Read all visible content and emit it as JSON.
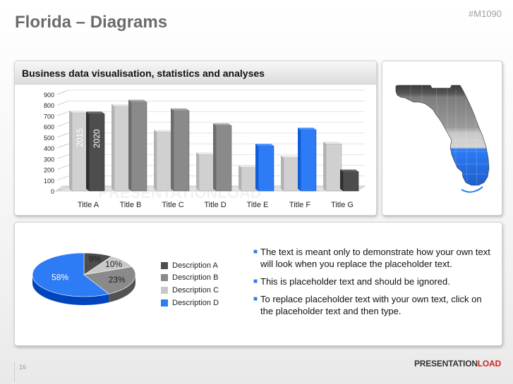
{
  "slide": {
    "title": "Florida – Diagrams",
    "code": "#M1090",
    "page_number": "16",
    "brand_main": "PRESENTATION",
    "brand_accent": "LOAD",
    "watermark": "PRESENTATIONLOAD"
  },
  "bar_panel": {
    "header": "Business data visualisation, statistics and analyses"
  },
  "colors": {
    "light": "#d0d0d0",
    "mid": "#8a8a8a",
    "dark": "#4d4d4d",
    "blue": "#2d7bf5"
  },
  "chart_data": [
    {
      "type": "bar",
      "categories": [
        "Title A",
        "Title B",
        "Title C",
        "Title D",
        "Title E",
        "Title F",
        "Title G"
      ],
      "series": [
        {
          "name": "2015",
          "values": [
            730,
            790,
            550,
            340,
            220,
            310,
            440
          ]
        },
        {
          "name": "2020",
          "values": [
            720,
            830,
            750,
            610,
            420,
            570,
            180
          ]
        }
      ],
      "bar_colors": [
        [
          "light",
          "dark"
        ],
        [
          "light",
          "mid"
        ],
        [
          "light",
          "mid"
        ],
        [
          "light",
          "mid"
        ],
        [
          "light",
          "blue"
        ],
        [
          "light",
          "blue"
        ],
        [
          "light",
          "dark"
        ]
      ],
      "ylim": [
        0,
        900
      ],
      "yticks": [
        0,
        100,
        200,
        300,
        400,
        500,
        600,
        700,
        800,
        900
      ],
      "grid": true
    },
    {
      "type": "pie",
      "labels": [
        "Description A",
        "Description B",
        "Description C",
        "Description D"
      ],
      "values": [
        9,
        23,
        10,
        58
      ],
      "value_labels": [
        "9%",
        "23%",
        "10%",
        "58%"
      ],
      "colors": [
        "#4d4d4d",
        "#8a8a8a",
        "#c8c8c8",
        "#2d7bf5"
      ],
      "legend": "right"
    }
  ],
  "bullets": [
    "The text is meant only to demonstrate how your own text will look when you replace the placeholder text.",
    "This is placeholder text and should be ignored.",
    "To replace placeholder text with your own text, click on the placeholder text and then type."
  ]
}
